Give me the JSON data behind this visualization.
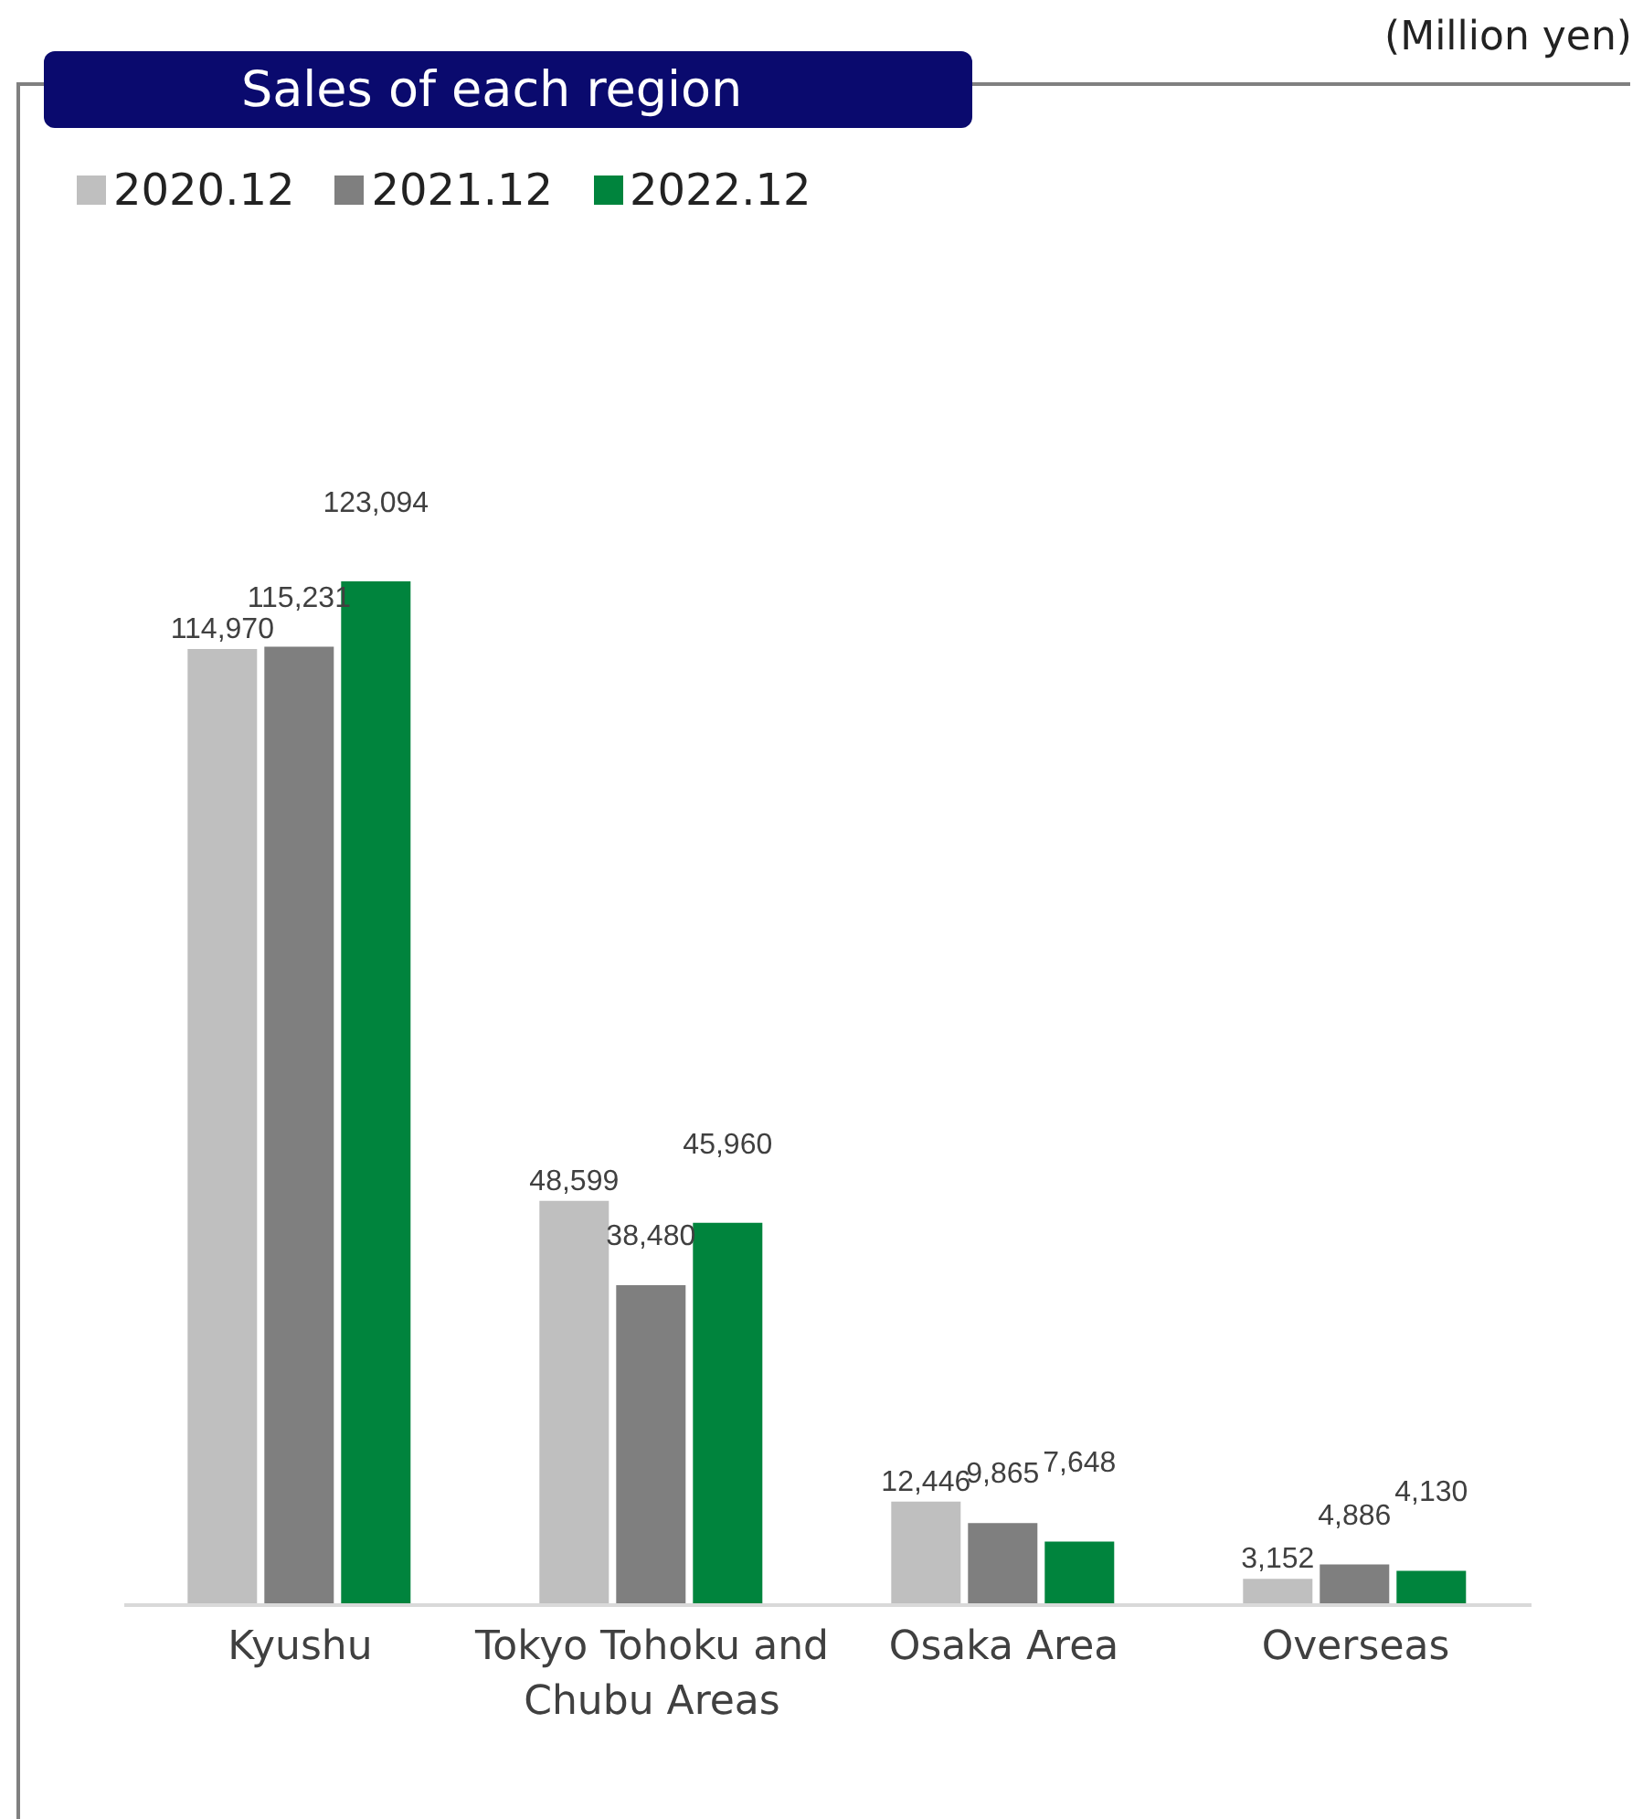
{
  "chart_data": {
    "type": "bar",
    "title": "Sales of each region",
    "annotations": [
      "(Million yen)"
    ],
    "categories": [
      "Kyushu",
      "Tokyo Tohoku and Chubu Areas",
      "Osaka Area",
      "Overseas"
    ],
    "series": [
      {
        "name": "2020.12",
        "color": "#bfbfbf",
        "values": [
          114970,
          48599,
          12446,
          3152
        ],
        "value_labels": [
          "114,970",
          "48,599",
          "12,446",
          "3,152"
        ]
      },
      {
        "name": "2021.12",
        "color": "#7f7f7f",
        "values": [
          115231,
          38480,
          9865,
          4886
        ],
        "value_labels": [
          "115,231",
          "38,480",
          "9,865",
          "4,886"
        ]
      },
      {
        "name": "2022.12",
        "color": "#00843d",
        "values": [
          123094,
          45960,
          7648,
          4130
        ],
        "value_labels": [
          "123,094",
          "45,960",
          "7,648",
          "4,130"
        ]
      }
    ],
    "legend": "top left",
    "grid": false
  }
}
